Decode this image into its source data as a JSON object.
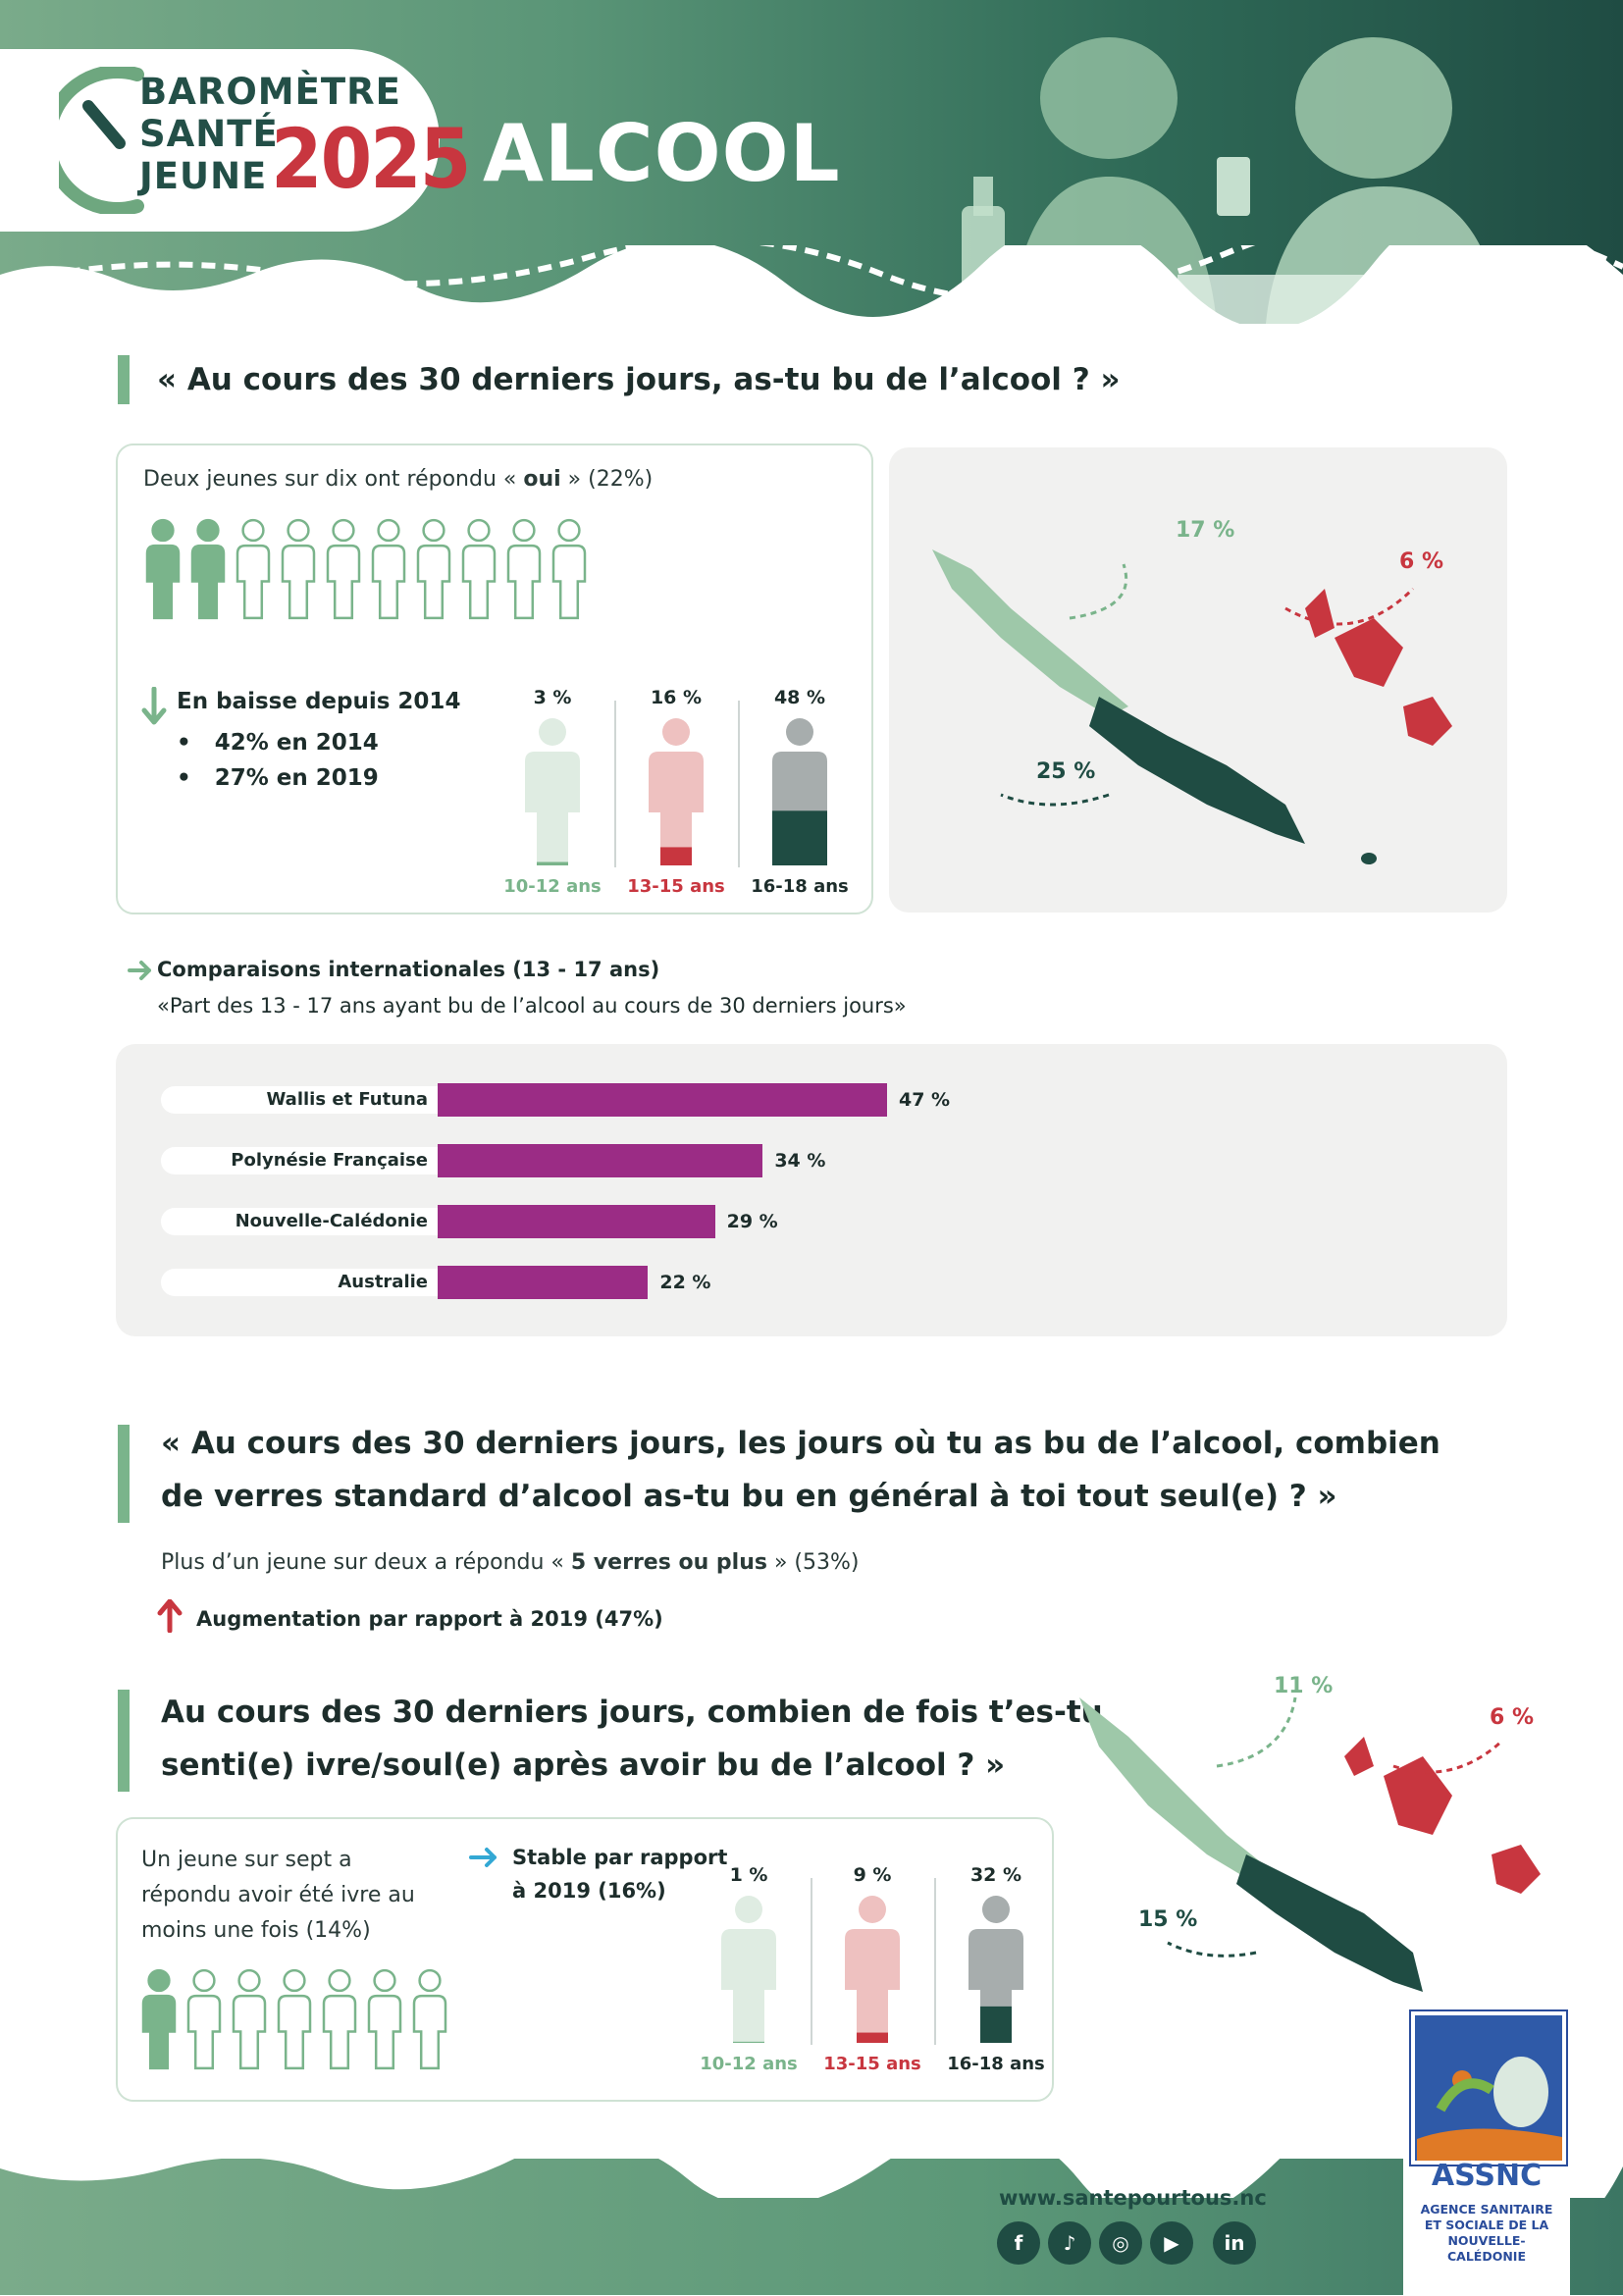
{
  "header": {
    "logo_lines": [
      "BAROMÈTRE",
      "SANTÉ",
      "JEUNE"
    ],
    "logo_year": "2025",
    "title": "ALCOOL"
  },
  "section1": {
    "question": "« Au cours des 30 derniers jours, as-tu bu de l’alcool ? »",
    "summary_pre": "Deux jeunes sur dix ont répondu « ",
    "summary_bold": "oui",
    "summary_post": " » (22%)",
    "people_filled": 2,
    "people_total": 10,
    "trend_label": "En baisse depuis 2014",
    "trend_items": [
      "42% en 2014",
      "27% en 2019"
    ],
    "age_groups": [
      {
        "label": "10-12 ans",
        "value": "3 %",
        "fill": 0.03
      },
      {
        "label": "13-15 ans",
        "value": "16 %",
        "fill": 0.16
      },
      {
        "label": "16-18 ans",
        "value": "48 %",
        "fill": 0.48
      }
    ],
    "map_values": {
      "north": "17 %",
      "islands": "6 %",
      "south": "25 %"
    }
  },
  "international": {
    "heading": "Comparaisons internationales (13 - 17 ans)",
    "subheading": "«Part des 13 - 17 ans ayant bu de l’alcool au cours de 30 derniers jours»"
  },
  "chart_data": {
    "type": "bar",
    "orientation": "horizontal",
    "categories": [
      "Wallis et Futuna",
      "Polynésie Française",
      "Nouvelle-Calédonie",
      "Australie"
    ],
    "values": [
      47,
      34,
      29,
      22
    ],
    "labels": [
      "47 %",
      "34 %",
      "29 %",
      "22 %"
    ],
    "xlim": [
      0,
      100
    ],
    "color": "#9b2c85"
  },
  "section2": {
    "question_lines": [
      "« Au cours des 30 derniers jours, les jours où tu as bu de l’alcool, combien",
      "de verres standard d’alcool as-tu bu en général à toi tout seul(e) ? »"
    ],
    "summary_pre": "Plus d’un jeune sur deux a répondu « ",
    "summary_bold": "5 verres ou plus",
    "summary_post": " » (53%)",
    "trend": "Augmentation par rapport à 2019 (47%)"
  },
  "section3": {
    "question_lines": [
      "Au cours des 30 derniers jours, combien de fois t’es-tu",
      "senti(e) ivre/soul(e) après avoir bu de l’alcool ? »"
    ],
    "summary_lines": [
      "Un jeune sur sept a",
      "répondu avoir été ivre au",
      "moins une fois (14%)"
    ],
    "people_filled": 1,
    "people_total": 7,
    "trend_lines": [
      "Stable par rapport",
      "à 2019 (16%)"
    ],
    "age_groups": [
      {
        "label": "10-12 ans",
        "value": "1 %",
        "fill": 0.01
      },
      {
        "label": "13-15 ans",
        "value": "9 %",
        "fill": 0.09
      },
      {
        "label": "16-18 ans",
        "value": "32 %",
        "fill": 0.32
      }
    ],
    "map_values": {
      "north": "11 %",
      "islands": "6 %",
      "south": "15 %"
    }
  },
  "footer": {
    "website": "www.santepourtous.nc",
    "socials": [
      "facebook-icon",
      "tiktok-icon",
      "instagram-icon",
      "youtube-icon",
      "linkedin-icon"
    ],
    "org_short": "ASSNC",
    "org_lines": [
      "AGENCE SANITAIRE",
      "ET SOCIALE DE LA",
      "NOUVELLE-CALÉDONIE"
    ]
  },
  "colors": {
    "green_light": "#dbe9df",
    "green": "#7ab48b",
    "pink": "#eec1c0",
    "red": "#c8363f",
    "grey": "#a7adad",
    "dark_teal": "#1f4c43"
  }
}
